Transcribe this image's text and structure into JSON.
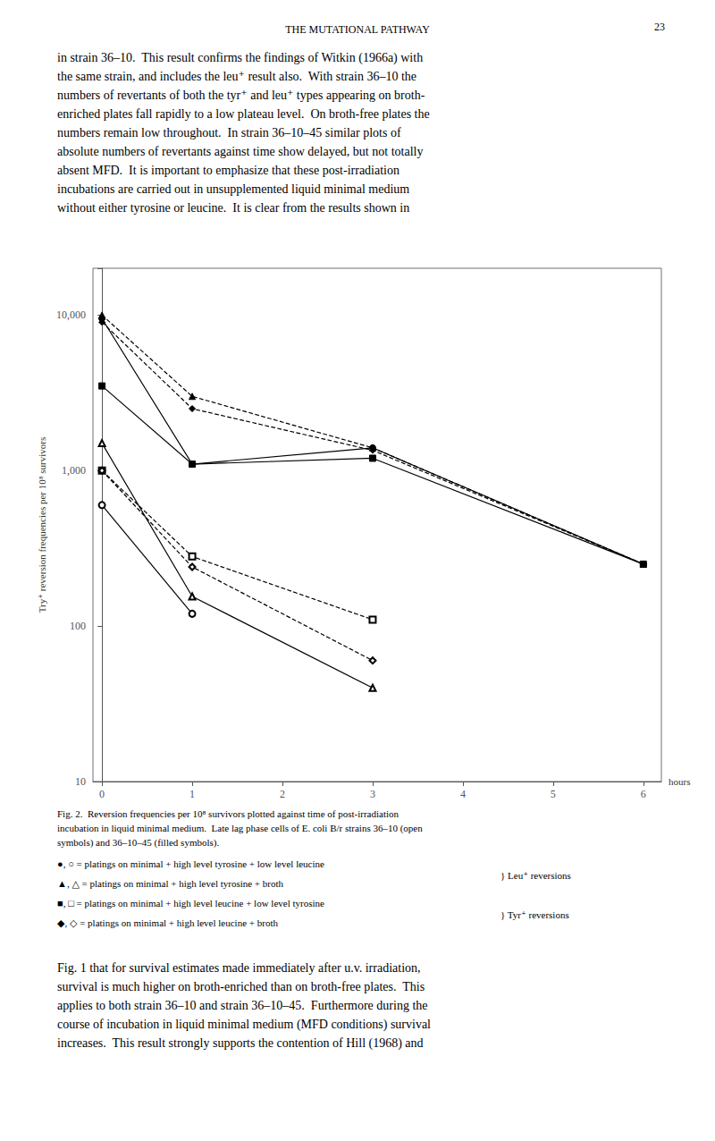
{
  "chart_data": {
    "type": "line",
    "title": "THE MUTATIONAL PATHWAY",
    "page_number": "23",
    "body_top": "in strain 36–10.  This result confirms the findings of Witkin (1966a) with\nthe same strain, and includes the leu⁺ result also.  With strain 36–10 the\nnumbers of revertants of both the tyr⁺ and leu⁺ types appearing on broth-\nenriched plates fall rapidly to a low plateau level.  On broth-free plates the\nnumbers remain low throughout.  In strain 36–10–45 similar plots of\nabsolute numbers of revertants against time show delayed, but not totally\nabsent MFD.  It is important to emphasize that these post-irradiation\nincubations are carried out in unsupplemented liquid minimal medium\nwithout either tyrosine or leucine.  It is clear from the results shown in",
    "caption": "Fig. 2.  Reversion frequencies per 10⁸ survivors plotted against time of post-irradiation\nincubation in liquid minimal medium.  Late lag phase cells of E. coli B/r strains 36–10 (open\nsymbols) and 36–10–45 (filled symbols).",
    "legend_lines": [
      "●, ○ = platings on minimal + high level tyrosine + low level leucine",
      "▲, △ = platings on minimal + high level tyrosine + broth",
      "■, □ = platings on minimal + high level leucine + low level tyrosine",
      "◆, ◇ = platings on minimal + high level leucine + broth"
    ],
    "braces": [
      "} Leu⁺ reversions",
      "} Tyr⁺ reversions"
    ],
    "body_bottom": "Fig. 1 that for survival estimates made immediately after u.v. irradiation,\nsurvival is much higher on broth-enriched than on broth-free plates.  This\napplies to both strain 36–10 and strain 36–10–45.  Furthermore during the\ncourse of incubation in liquid minimal medium (MFD conditions) survival\nincreases.  This result strongly supports the contention of Hill (1968) and",
    "xlabel": "hours",
    "ylabel": "Try⁺ reversion frequencies per 10⁸ survivors",
    "log": "y",
    "xlim": [
      -0.1,
      6.2
    ],
    "ylim": [
      10,
      20000
    ],
    "xticks": [
      0,
      1,
      2,
      3,
      4,
      5,
      6
    ],
    "yticks": [
      10,
      100,
      {
        "value": 1000,
        "label": "1,000"
      },
      {
        "value": 10000,
        "label": "10,000"
      }
    ],
    "grid": false,
    "color": "#000000",
    "series": [
      {
        "x": [
          0,
          1,
          3,
          6
        ],
        "values": [
          9500,
          1100,
          1400,
          250
        ],
        "marker": "circle",
        "line_style": "solid"
      },
      {
        "x": [
          0,
          1,
          3,
          6
        ],
        "values": [
          10000,
          3000,
          1400,
          250
        ],
        "marker": "triangle",
        "line_style": "dashed"
      },
      {
        "x": [
          0,
          1,
          3,
          6
        ],
        "values": [
          3500,
          1100,
          1200,
          250
        ],
        "marker": "rect",
        "line_style": "solid"
      },
      {
        "x": [
          0,
          1,
          3,
          6
        ],
        "values": [
          9000,
          2500,
          1350,
          250
        ],
        "marker": "diamond",
        "line_style": "dashed"
      },
      {
        "x": [
          0,
          1
        ],
        "values": [
          600,
          120
        ],
        "marker": "emptyCircle",
        "line_style": "solid"
      },
      {
        "x": [
          0,
          1,
          3
        ],
        "values": [
          1500,
          155,
          40
        ],
        "marker": "emptyTriangle",
        "line_style": "solid"
      },
      {
        "x": [
          0,
          1,
          3
        ],
        "values": [
          1000,
          280,
          110
        ],
        "marker": "emptyRect",
        "line_style": "dashed"
      },
      {
        "x": [
          0,
          1,
          3
        ],
        "values": [
          1000,
          240,
          60
        ],
        "marker": "emptyDiamond",
        "line_style": "dashed"
      }
    ]
  }
}
